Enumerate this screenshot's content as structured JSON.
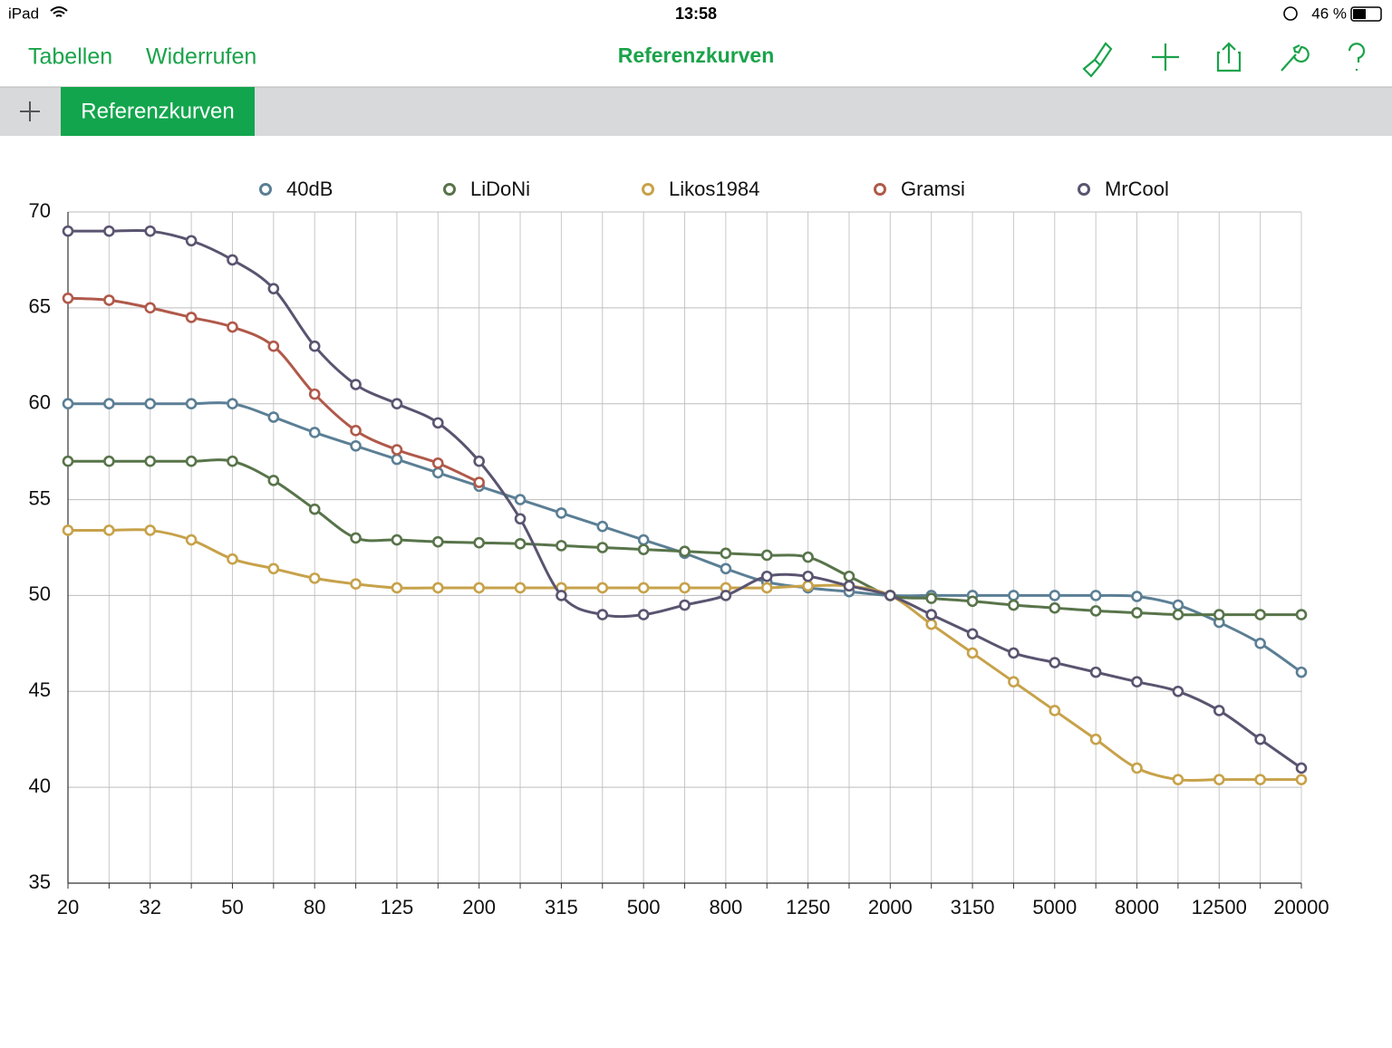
{
  "status_bar": {
    "device": "iPad",
    "time": "13:58",
    "battery": "46 %"
  },
  "toolbar": {
    "left": [
      "Tabellen",
      "Widerrufen"
    ],
    "title": "Referenzkurven"
  },
  "tabs": [
    "Referenzkurven"
  ],
  "chart_data": {
    "type": "line",
    "categories": [
      "20",
      null,
      "32",
      null,
      "50",
      null,
      "80",
      null,
      "125",
      null,
      "200",
      null,
      "315",
      null,
      "500",
      null,
      "800",
      null,
      "1250",
      null,
      "2000",
      null,
      "3150",
      null,
      "5000",
      null,
      "8000",
      null,
      "12500",
      null,
      "20000"
    ],
    "series": [
      {
        "name": "40dB",
        "color": "#5b7f95",
        "values": [
          60,
          60,
          60,
          60,
          60,
          59.3,
          58.5,
          57.8,
          57.1,
          56.4,
          55.7,
          55,
          54.3,
          53.6,
          52.9,
          52.2,
          51.4,
          50.7,
          50.4,
          50.2,
          50,
          50,
          50,
          50,
          50,
          50,
          49.95,
          49.5,
          48.6,
          47.5,
          46
        ]
      },
      {
        "name": "LiDoNi",
        "color": "#58744a",
        "values": [
          57,
          57,
          57,
          57,
          57,
          56,
          54.5,
          53,
          52.9,
          52.8,
          52.75,
          52.7,
          52.6,
          52.5,
          52.4,
          52.3,
          52.2,
          52.1,
          52,
          51,
          50,
          49.85,
          49.7,
          49.5,
          49.35,
          49.2,
          49.1,
          49,
          49,
          49,
          49
        ]
      },
      {
        "name": "Likos1984",
        "color": "#c7a24a",
        "values": [
          53.4,
          53.4,
          53.4,
          52.9,
          51.9,
          51.4,
          50.9,
          50.6,
          50.4,
          50.4,
          50.4,
          50.4,
          50.4,
          50.4,
          50.4,
          50.4,
          50.4,
          50.4,
          50.5,
          50.5,
          50,
          48.5,
          47,
          45.5,
          44,
          42.5,
          41,
          40.4,
          40.4,
          40.4,
          40.4
        ]
      },
      {
        "name": "Gramsi",
        "color": "#b0594a",
        "values": [
          65.5,
          65.4,
          65,
          64.5,
          64,
          63,
          60.5,
          58.6,
          57.6,
          56.9,
          55.9,
          null,
          null,
          null,
          null,
          null,
          null,
          null,
          null,
          null,
          null,
          null,
          null,
          null,
          null,
          null,
          null,
          null,
          null,
          null,
          null
        ]
      },
      {
        "name": "MrCool",
        "color": "#5a5470",
        "values": [
          69,
          69,
          69,
          68.5,
          67.5,
          66,
          63,
          61,
          60,
          59,
          57,
          54,
          50,
          49,
          49,
          49.5,
          50,
          51,
          51,
          50.5,
          50,
          49,
          48,
          47,
          46.5,
          46,
          45.5,
          45,
          44,
          42.5,
          41
        ]
      }
    ],
    "ylim": [
      35,
      70
    ],
    "yticks": [
      35,
      40,
      45,
      50,
      55,
      60,
      65,
      70
    ],
    "grid": true,
    "legend": "top"
  }
}
